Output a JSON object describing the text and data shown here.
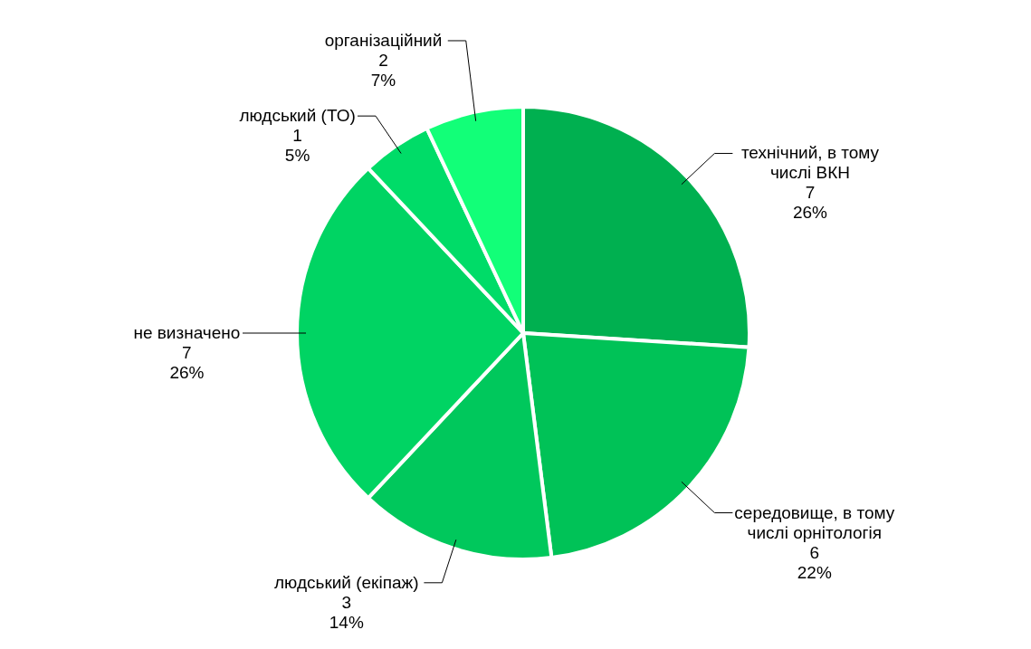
{
  "chart_data": {
    "type": "pie",
    "categories": [
      "технічний, в тому числі ВКН",
      "середовище, в тому числі орнітологія",
      "людський (екіпаж)",
      "не визначено",
      "людський (ТО)",
      "організаційний"
    ],
    "values": [
      26,
      22,
      14,
      26,
      5,
      7
    ],
    "value_labels": [
      "7\n26%",
      "6\n22%",
      "3\n14%",
      "7\n26%",
      "1\n5%",
      "2\n7%"
    ],
    "colors": [
      "#00b050",
      "#00c257",
      "#00c85c",
      "#00d463",
      "#00dc68",
      "#12ff78"
    ],
    "legend": false
  }
}
